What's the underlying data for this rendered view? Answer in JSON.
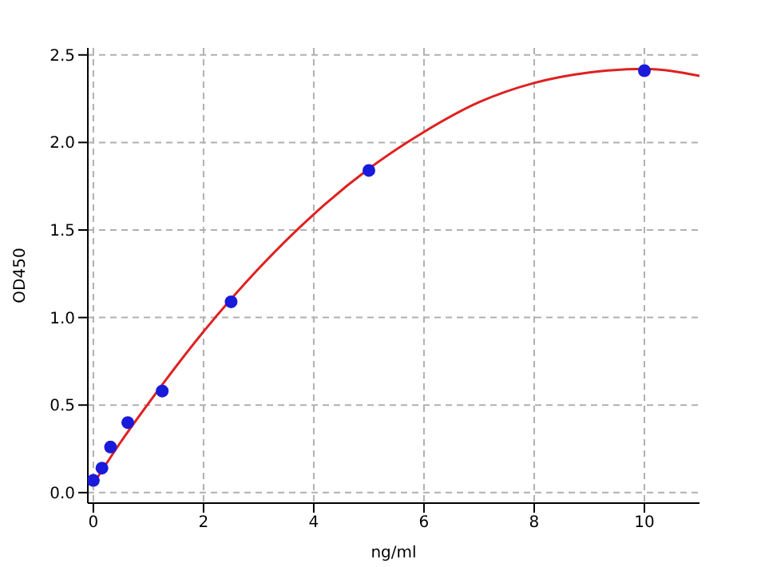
{
  "chart_data": {
    "type": "scatter",
    "xlabel": "ng/ml",
    "ylabel": "OD450",
    "series": [
      {
        "color": "#1a1adb",
        "marker": "circle",
        "x": [
          0,
          0.156,
          0.312,
          0.625,
          1.25,
          2.5,
          5,
          10
        ],
        "values": [
          0.07,
          0.14,
          0.26,
          0.4,
          0.58,
          1.09,
          1.84,
          2.41
        ]
      },
      {
        "type": "line",
        "color": "#e02020",
        "marker": "none",
        "line_style": "solid",
        "x": [
          0,
          0.5,
          1,
          2,
          3,
          4,
          5,
          6,
          7,
          8,
          9,
          10,
          11
        ],
        "values": [
          0.05,
          0.29,
          0.51,
          0.92,
          1.28,
          1.59,
          1.85,
          2.06,
          2.23,
          2.34,
          2.4,
          2.42,
          2.38
        ]
      }
    ],
    "xlim": [
      -0.1,
      11
    ],
    "xticks": [
      0,
      2,
      4,
      6,
      8,
      10
    ],
    "ylim": [
      -0.06,
      2.54
    ],
    "yticks": [
      {
        "value": 0,
        "label": "0.0"
      },
      {
        "value": 0.5,
        "label": "0.5"
      },
      {
        "value": 1,
        "label": "1.0"
      },
      {
        "value": 1.5,
        "label": "1.5"
      },
      {
        "value": 2,
        "label": "2.0"
      },
      {
        "value": 2.5,
        "label": "2.5"
      }
    ],
    "grid": true
  }
}
